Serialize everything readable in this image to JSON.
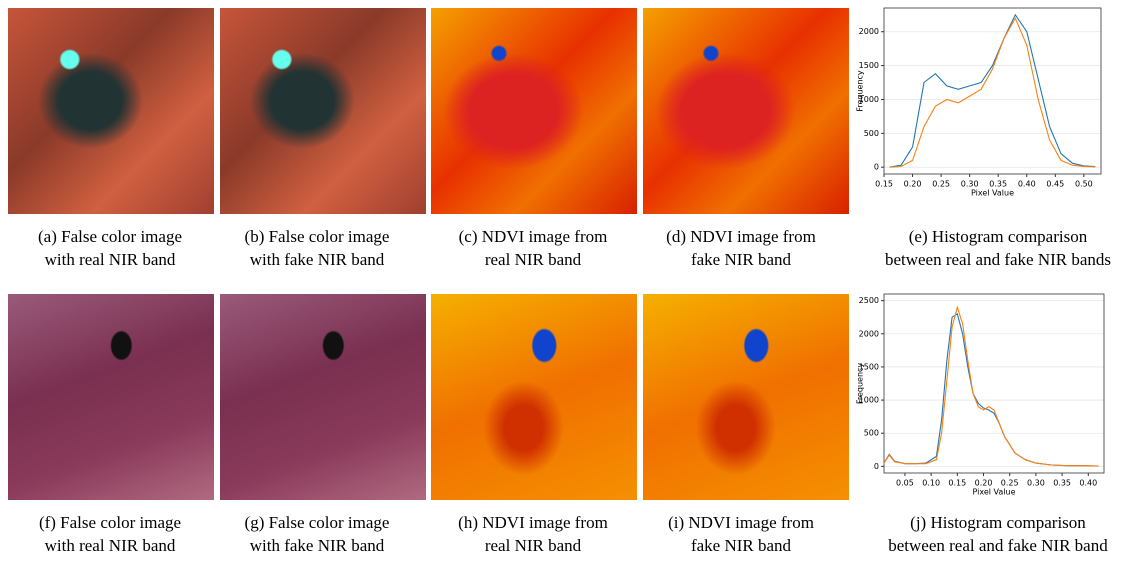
{
  "captions": [
    [
      "(a) False color image",
      "with real NIR band"
    ],
    [
      "(b) False color image",
      "with fake NIR band"
    ],
    [
      "(c) NDVI image from",
      "real NIR band"
    ],
    [
      "(d) NDVI image from",
      "fake NIR band"
    ],
    [
      "(e) Histogram comparison",
      "between real and fake NIR bands"
    ],
    [
      "(f) False color image",
      "with real NIR band"
    ],
    [
      "(g) False color image",
      "with fake NIR band"
    ],
    [
      "(h) NDVI image from",
      "real NIR band"
    ],
    [
      "(i) NDVI image from",
      "fake NIR band"
    ],
    [
      "(j) Histogram comparison",
      "between real and fake NIR band"
    ]
  ],
  "chart_data": [
    {
      "type": "line",
      "x_label": "Pixel Value",
      "y_label": "Frequency",
      "grid": true,
      "x": [
        0.16,
        0.18,
        0.2,
        0.22,
        0.24,
        0.26,
        0.28,
        0.3,
        0.32,
        0.34,
        0.36,
        0.38,
        0.4,
        0.42,
        0.44,
        0.46,
        0.48,
        0.5,
        0.52
      ],
      "series": [
        {
          "color": "#1f77b4",
          "values": [
            0,
            30,
            300,
            1250,
            1380,
            1200,
            1150,
            1200,
            1250,
            1500,
            1900,
            2250,
            2000,
            1300,
            600,
            200,
            60,
            20,
            10
          ]
        },
        {
          "color": "#ff7f0e",
          "values": [
            0,
            10,
            100,
            600,
            900,
            1000,
            950,
            1050,
            1150,
            1450,
            1900,
            2200,
            1800,
            1000,
            400,
            100,
            30,
            10,
            5
          ]
        }
      ],
      "xlim": [
        0.15,
        0.53
      ],
      "xticks": [
        {
          "value": 0.15,
          "label": "0.15"
        },
        {
          "value": 0.2,
          "label": "0.20"
        },
        {
          "value": 0.25,
          "label": "0.25"
        },
        {
          "value": 0.3,
          "label": "0.30"
        },
        {
          "value": 0.35,
          "label": "0.35"
        },
        {
          "value": 0.4,
          "label": "0.40"
        },
        {
          "value": 0.45,
          "label": "0.45"
        },
        {
          "value": 0.5,
          "label": "0.50"
        }
      ],
      "ylim": [
        -100,
        2350
      ],
      "yticks": [
        0,
        500,
        1000,
        1500,
        2000
      ]
    },
    {
      "type": "line",
      "x_label": "Pixel Value",
      "y_label": "Frequency",
      "grid": true,
      "x": [
        0.01,
        0.02,
        0.03,
        0.05,
        0.07,
        0.09,
        0.11,
        0.12,
        0.13,
        0.14,
        0.15,
        0.16,
        0.17,
        0.18,
        0.19,
        0.2,
        0.21,
        0.22,
        0.23,
        0.24,
        0.26,
        0.28,
        0.3,
        0.33,
        0.36,
        0.39,
        0.42
      ],
      "series": [
        {
          "color": "#1f77b4",
          "values": [
            50,
            180,
            80,
            40,
            40,
            50,
            150,
            700,
            1600,
            2250,
            2300,
            2000,
            1500,
            1100,
            950,
            880,
            850,
            800,
            650,
            450,
            200,
            100,
            50,
            20,
            10,
            10,
            5
          ]
        },
        {
          "color": "#ff7f0e",
          "values": [
            50,
            170,
            70,
            40,
            40,
            40,
            100,
            500,
            1300,
            2100,
            2400,
            2150,
            1600,
            1100,
            900,
            850,
            900,
            850,
            650,
            450,
            200,
            100,
            50,
            20,
            10,
            10,
            5
          ]
        }
      ],
      "xlim": [
        0.01,
        0.43
      ],
      "xticks": [
        0.05,
        {
          "value": 0.1,
          "label": "0.10"
        },
        0.15,
        {
          "value": 0.2,
          "label": "0.20"
        },
        0.25,
        {
          "value": 0.3,
          "label": "0.30"
        },
        0.35,
        {
          "value": 0.4,
          "label": "0.40"
        }
      ],
      "ylim": [
        -100,
        2600
      ],
      "yticks": [
        0,
        500,
        1000,
        1500,
        2000,
        2500
      ]
    }
  ]
}
